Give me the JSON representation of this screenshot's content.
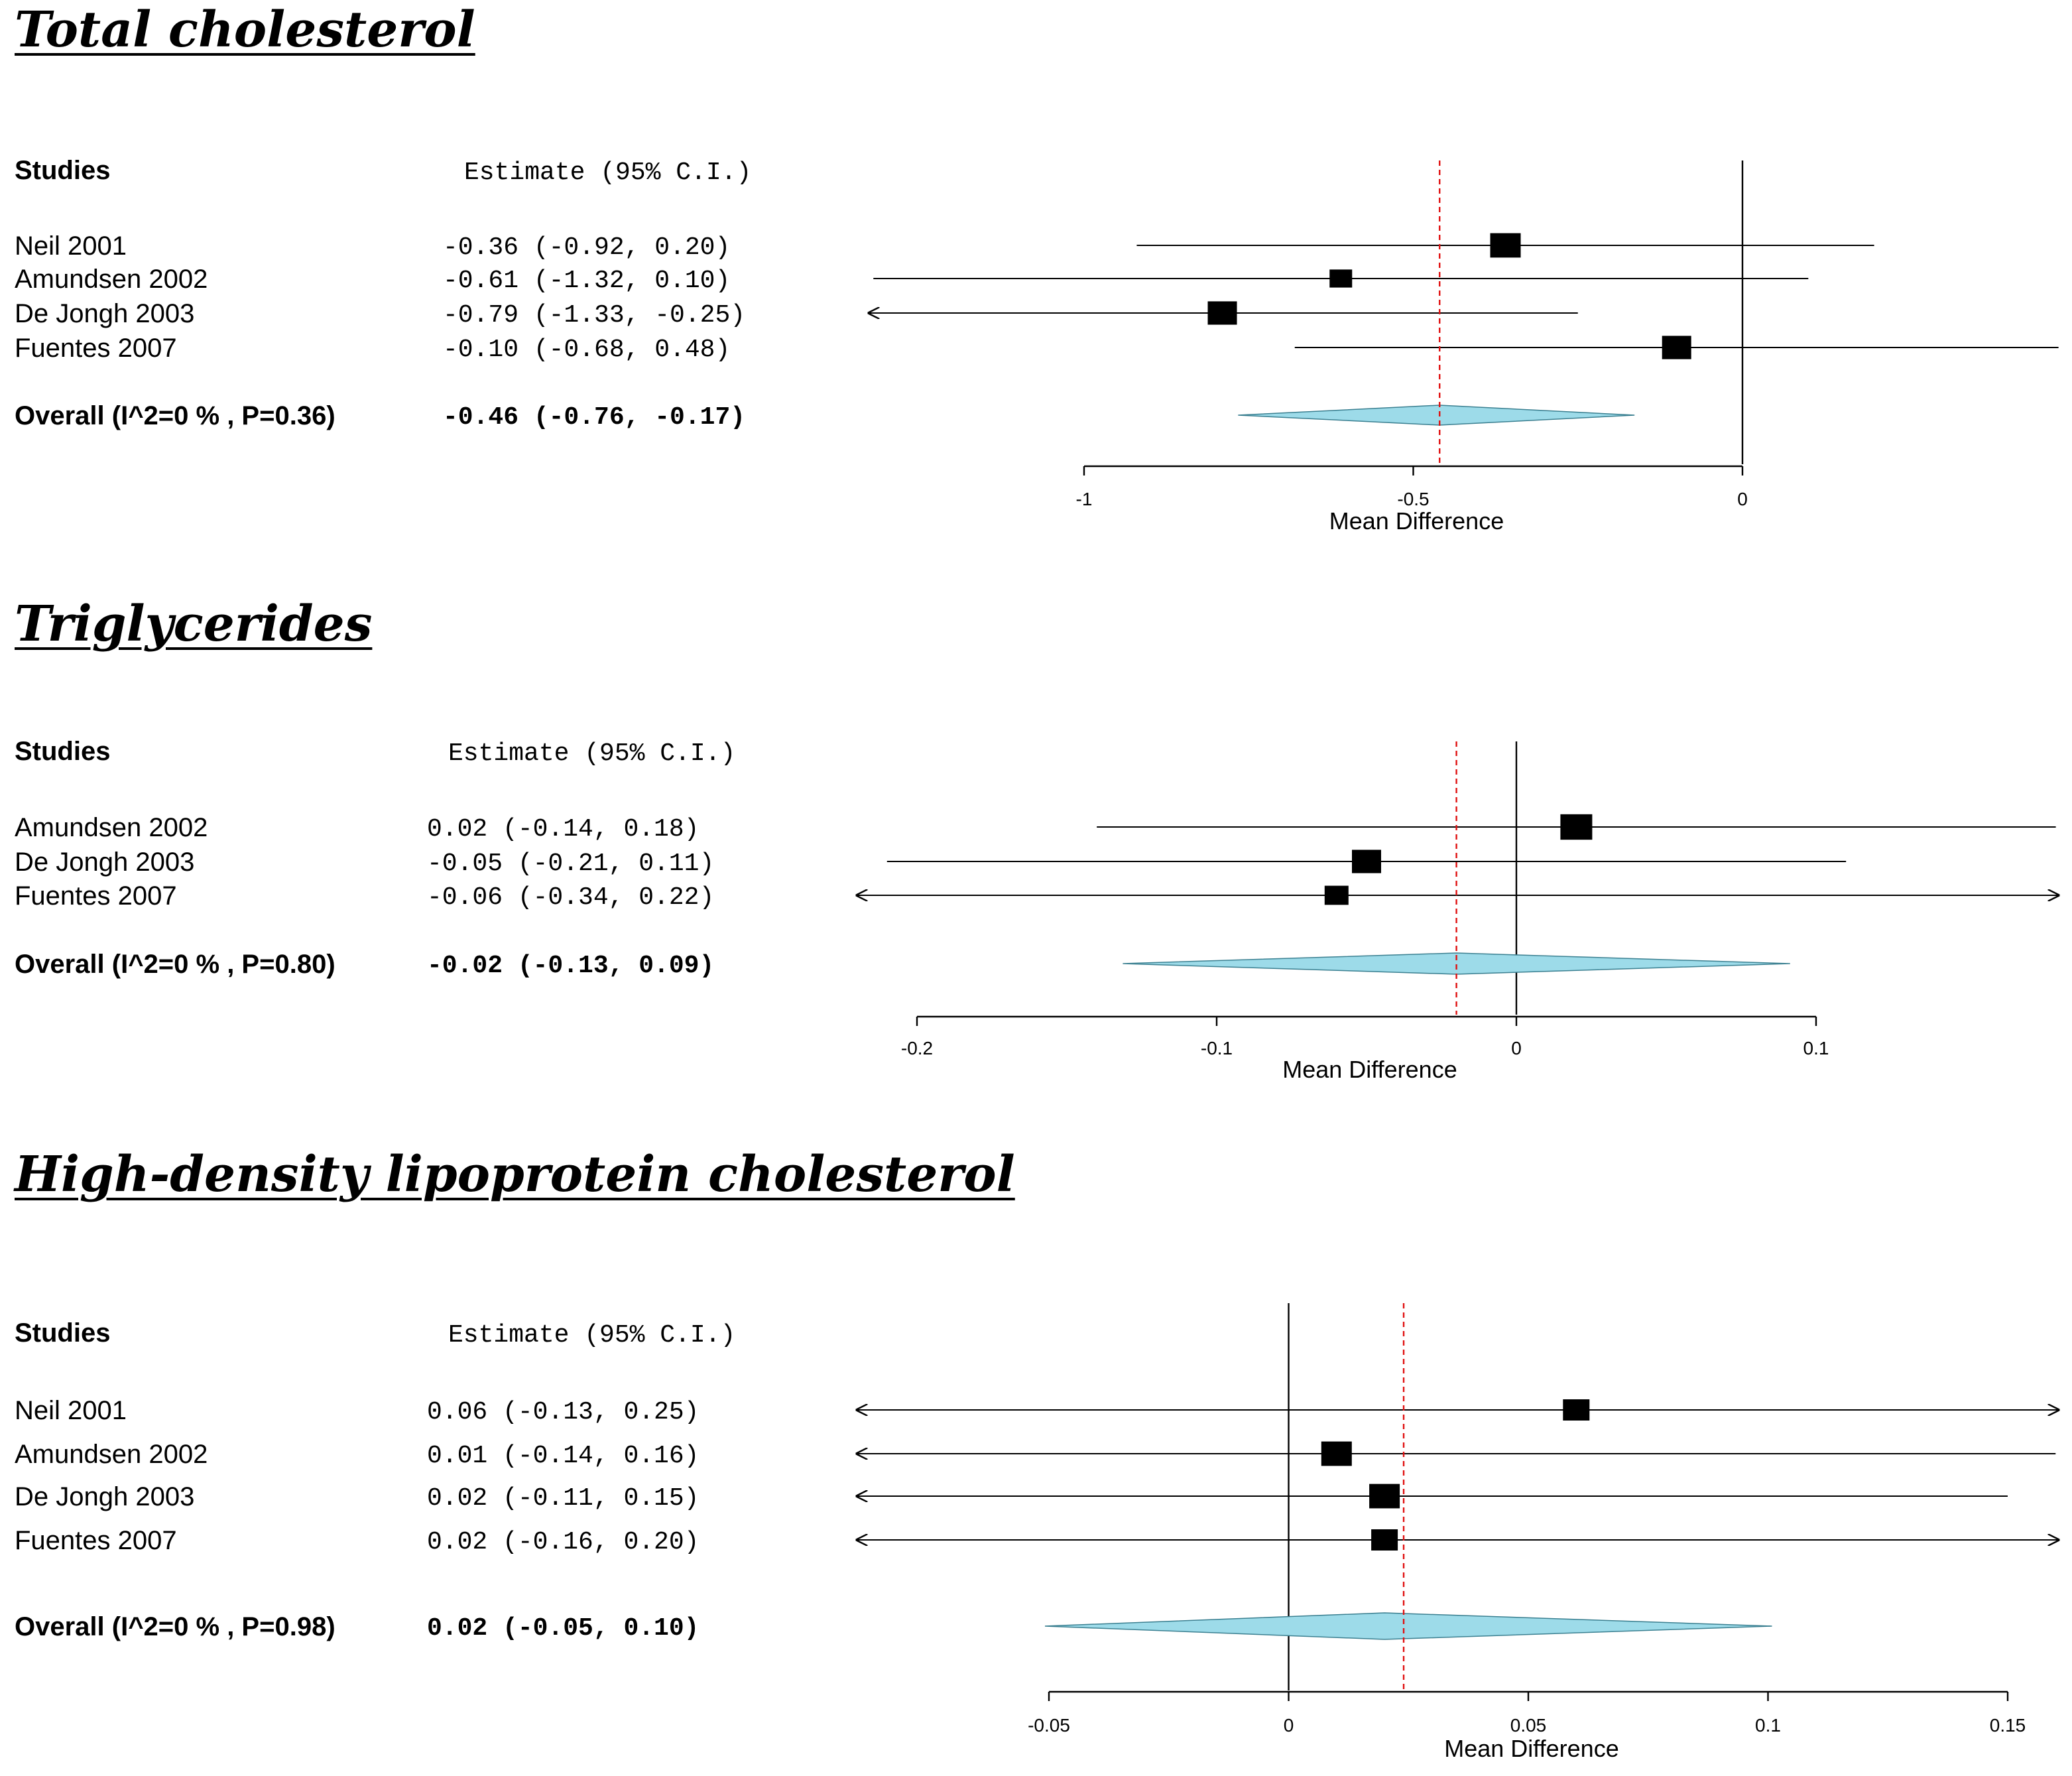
{
  "chart_data": [
    {
      "type": "forest",
      "title": "Total cholesterol",
      "header_studies": "Studies",
      "header_estimate": "Estimate  (95% C.I.)",
      "xlabel": "Mean Difference",
      "xlim": [
        -1,
        0
      ],
      "xticks": [
        -1,
        -0.5,
        0
      ],
      "xtick_labels": [
        "-1",
        "-0.5",
        "0"
      ],
      "null_value": 0,
      "overall_value": -0.46,
      "colors": {
        "diamond": "#9ddbe9",
        "overall_line": "#e01010",
        "marks": "#000000"
      },
      "studies": [
        {
          "name": "Neil 2001",
          "est": -0.36,
          "lo": -0.92,
          "hi": 0.2,
          "est_text": "-0.36",
          "ci_text": "(-0.92,  0.20)"
        },
        {
          "name": "Amundsen 2002",
          "est": -0.61,
          "lo": -1.32,
          "hi": 0.1,
          "est_text": "-0.61",
          "ci_text": "(-1.32,  0.10)"
        },
        {
          "name": "De Jongh 2003",
          "est": -0.79,
          "lo": -1.33,
          "hi": -0.25,
          "est_text": "-0.79",
          "ci_text": "(-1.33, -0.25)"
        },
        {
          "name": "Fuentes 2007",
          "est": -0.1,
          "lo": -0.68,
          "hi": 0.48,
          "est_text": "-0.10",
          "ci_text": "(-0.68,  0.48)"
        }
      ],
      "overall": {
        "name": "Overall (I^2=0 % , P=0.36)",
        "est": -0.46,
        "lo": -0.76,
        "hi": -0.17,
        "est_text": "-0.46",
        "ci_text": "(-0.76, -0.17)"
      }
    },
    {
      "type": "forest",
      "title": "Triglycerides",
      "header_studies": "Studies",
      "header_estimate": "Estimate  (95% C.I.)",
      "xlabel": "Mean Difference",
      "xlim": [
        -0.2,
        0.1
      ],
      "xticks": [
        -0.2,
        -0.1,
        0,
        0.1
      ],
      "xtick_labels": [
        "-0.2",
        "-0.1",
        "0",
        "0.1"
      ],
      "null_value": 0,
      "overall_value": -0.02,
      "colors": {
        "diamond": "#9ddbe9",
        "overall_line": "#e01010",
        "marks": "#000000"
      },
      "studies": [
        {
          "name": "Amundsen 2002",
          "est": 0.02,
          "lo": -0.14,
          "hi": 0.18,
          "est_text": " 0.02",
          "ci_text": "(-0.14, 0.18)"
        },
        {
          "name": "De Jongh 2003",
          "est": -0.05,
          "lo": -0.21,
          "hi": 0.11,
          "est_text": "-0.05",
          "ci_text": "(-0.21, 0.11)"
        },
        {
          "name": "Fuentes 2007",
          "est": -0.06,
          "lo": -0.34,
          "hi": 0.22,
          "est_text": "-0.06",
          "ci_text": "(-0.34, 0.22)"
        }
      ],
      "overall": {
        "name": "Overall (I^2=0 % , P=0.80)",
        "est": -0.02,
        "lo": -0.13,
        "hi": 0.09,
        "est_text": "-0.02",
        "ci_text": "(-0.13, 0.09)"
      }
    },
    {
      "type": "forest",
      "title": "High-density lipoprotein cholesterol",
      "header_studies": "Studies",
      "header_estimate": "Estimate  (95% C.I.)",
      "xlabel": "Mean Difference",
      "xlim": [
        -0.05,
        0.15
      ],
      "xticks": [
        -0.05,
        0,
        0.05,
        0.1,
        0.15
      ],
      "xtick_labels": [
        "-0.05",
        "0",
        "0.05",
        "0.1",
        "0.15"
      ],
      "null_value": 0,
      "overall_value": 0.024,
      "colors": {
        "diamond": "#9ddbe9",
        "overall_line": "#e01010",
        "marks": "#000000"
      },
      "studies": [
        {
          "name": "Neil 2001",
          "est": 0.06,
          "lo": -0.13,
          "hi": 0.25,
          "est_text": " 0.06",
          "ci_text": "(-0.13, 0.25)"
        },
        {
          "name": "Amundsen 2002",
          "est": 0.01,
          "lo": -0.14,
          "hi": 0.16,
          "est_text": " 0.01",
          "ci_text": "(-0.14, 0.16)"
        },
        {
          "name": "De Jongh 2003",
          "est": 0.02,
          "lo": -0.11,
          "hi": 0.15,
          "est_text": " 0.02",
          "ci_text": "(-0.11, 0.15)"
        },
        {
          "name": "Fuentes 2007",
          "est": 0.02,
          "lo": -0.16,
          "hi": 0.2,
          "est_text": " 0.02",
          "ci_text": "(-0.16, 0.20)"
        }
      ],
      "overall": {
        "name": "Overall (I^2=0 % , P=0.98)",
        "est": 0.02,
        "lo": -0.05,
        "hi": 0.1,
        "est_text": " 0.02",
        "ci_text": "(-0.05, 0.10)"
      }
    }
  ]
}
